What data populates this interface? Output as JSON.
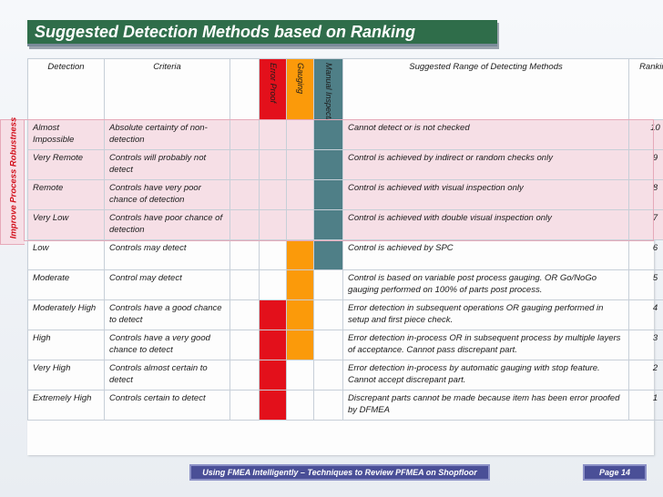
{
  "slide": {
    "title": "Suggested Detection Methods based on Ranking",
    "side_label": "Improve Process Robustness",
    "footer_text": "Using FMEA Intelligently – Techniques to Review PFMEA on Shopfloor",
    "page_label": "Page 14"
  },
  "headers": {
    "detection": "Detection",
    "criteria": "Criteria",
    "error_proof": "Error Proof",
    "gauging": "Gauging",
    "manual_inspection": "Manual Inspection",
    "range": "Suggested Range of Detecting Methods",
    "ranking": "Ranking"
  },
  "colors": {
    "title_bg": "#2f6d4a",
    "error_proof": "#e3101b",
    "gauging": "#fb9a0a",
    "manual_inspection": "#4f7f87",
    "highlight_rows": "#f6dfe6",
    "footer_bg": "#4a4f97"
  },
  "rows": [
    {
      "detection": "Almost Impossible",
      "criteria": "Absolute certainty of non-detection",
      "method": "Cannot detect or is not checked",
      "ranking": "10",
      "error_proof": false,
      "gauging": false,
      "manual": true,
      "highlight": true
    },
    {
      "detection": "Very Remote",
      "criteria": "Controls will probably not detect",
      "method": "Control is achieved by indirect or random checks only",
      "ranking": "9",
      "error_proof": false,
      "gauging": false,
      "manual": true,
      "highlight": true
    },
    {
      "detection": "Remote",
      "criteria": "Controls have very poor chance of detection",
      "method": "Control is achieved with visual inspection only",
      "ranking": "8",
      "error_proof": false,
      "gauging": false,
      "manual": true,
      "highlight": true
    },
    {
      "detection": "Very Low",
      "criteria": "Controls have poor chance of detection",
      "method": "Control is achieved with double visual inspection only",
      "ranking": "7",
      "error_proof": false,
      "gauging": false,
      "manual": true,
      "highlight": true
    },
    {
      "detection": "Low",
      "criteria": "Controls may detect",
      "method": "Control is achieved by SPC",
      "ranking": "6",
      "error_proof": false,
      "gauging": true,
      "manual": true,
      "highlight": false
    },
    {
      "detection": "Moderate",
      "criteria": "Control may detect",
      "method": "Control is based on variable post process gauging. OR Go/NoGo gauging performed on 100% of parts post process.",
      "ranking": "5",
      "error_proof": false,
      "gauging": true,
      "manual": false,
      "highlight": false
    },
    {
      "detection": "Moderately High",
      "criteria": "Controls have a good chance to detect",
      "method": "Error detection in subsequent operations OR gauging performed in setup and first piece check.",
      "ranking": "4",
      "error_proof": true,
      "gauging": true,
      "manual": false,
      "highlight": false
    },
    {
      "detection": "High",
      "criteria": "Controls have a very good chance to detect",
      "method": "Error detection in-process OR in subsequent process by multiple layers of acceptance. Cannot pass discrepant part.",
      "ranking": "3",
      "error_proof": true,
      "gauging": true,
      "manual": false,
      "highlight": false
    },
    {
      "detection": "Very High",
      "criteria": "Controls almost certain to detect",
      "method": "Error detection in-process by automatic gauging with stop feature. Cannot accept discrepant part.",
      "ranking": "2",
      "error_proof": true,
      "gauging": false,
      "manual": false,
      "highlight": false
    },
    {
      "detection": "Extremely High",
      "criteria": "Controls certain to detect",
      "method": "Discrepant parts cannot be made because item has been error proofed by DFMEA",
      "ranking": "1",
      "error_proof": true,
      "gauging": false,
      "manual": false,
      "highlight": false
    }
  ]
}
